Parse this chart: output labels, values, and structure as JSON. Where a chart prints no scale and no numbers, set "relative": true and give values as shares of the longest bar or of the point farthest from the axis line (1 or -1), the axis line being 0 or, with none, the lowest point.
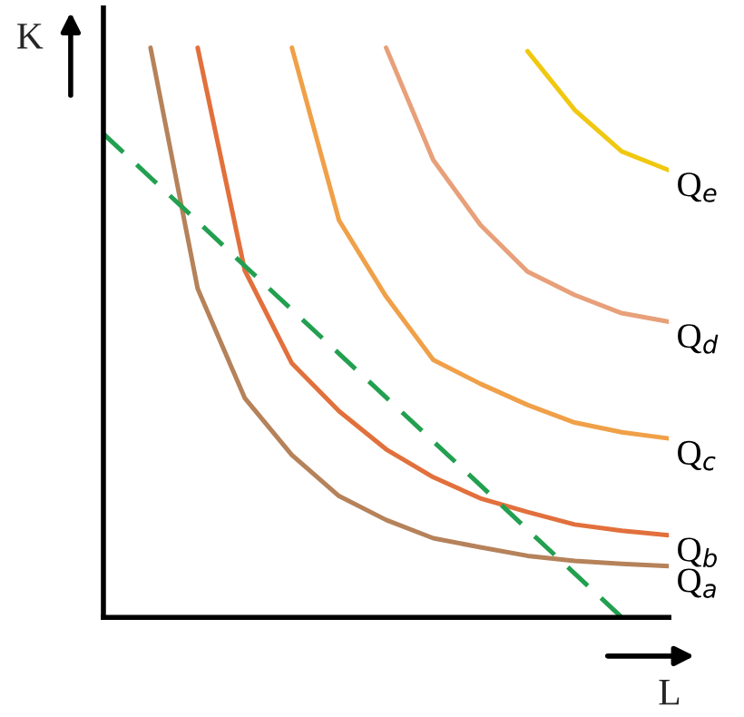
{
  "chart_data": {
    "type": "line",
    "relative": true,
    "xlabel": "L",
    "ylabel": "K",
    "marker": "none",
    "categories": [
      null,
      null,
      null,
      null,
      null,
      null,
      null,
      null,
      null,
      null,
      null,
      null,
      null
    ],
    "series": [
      {
        "name": "Q$_{a}$",
        "color": "#b5825a",
        "values": [
          null,
          1.0,
          0.577,
          0.385,
          0.285,
          0.213,
          0.171,
          0.139,
          0.123,
          0.108,
          0.099,
          0.094,
          0.09
        ]
      },
      {
        "name": "Q$_{b}$",
        "color": "#e2703c",
        "values": [
          null,
          null,
          1.0,
          0.609,
          0.446,
          0.362,
          0.295,
          0.246,
          0.209,
          0.185,
          0.163,
          0.152,
          0.144
        ]
      },
      {
        "name": "Q$_{c}$",
        "color": "#f0a048",
        "values": [
          null,
          null,
          null,
          null,
          1.0,
          0.697,
          0.563,
          0.452,
          0.41,
          0.373,
          0.342,
          0.325,
          0.314
        ]
      },
      {
        "name": "Q$_{d}$",
        "color": "#e8a07a",
        "values": [
          null,
          null,
          null,
          null,
          null,
          null,
          1.0,
          0.803,
          0.689,
          0.607,
          0.566,
          0.534,
          0.519
        ]
      },
      {
        "name": "Q$_{e}$",
        "color": "#f0c810",
        "values": [
          null,
          null,
          null,
          null,
          null,
          null,
          null,
          null,
          null,
          0.994,
          0.891,
          0.818,
          0.785
        ]
      },
      {
        "color": "#22a050",
        "line_style": "dashed",
        "values": [
          0.849,
          0.772,
          0.695,
          0.617,
          0.54,
          0.463,
          0.386,
          0.309,
          0.232,
          0.154,
          0.077,
          0,
          null
        ]
      }
    ]
  }
}
